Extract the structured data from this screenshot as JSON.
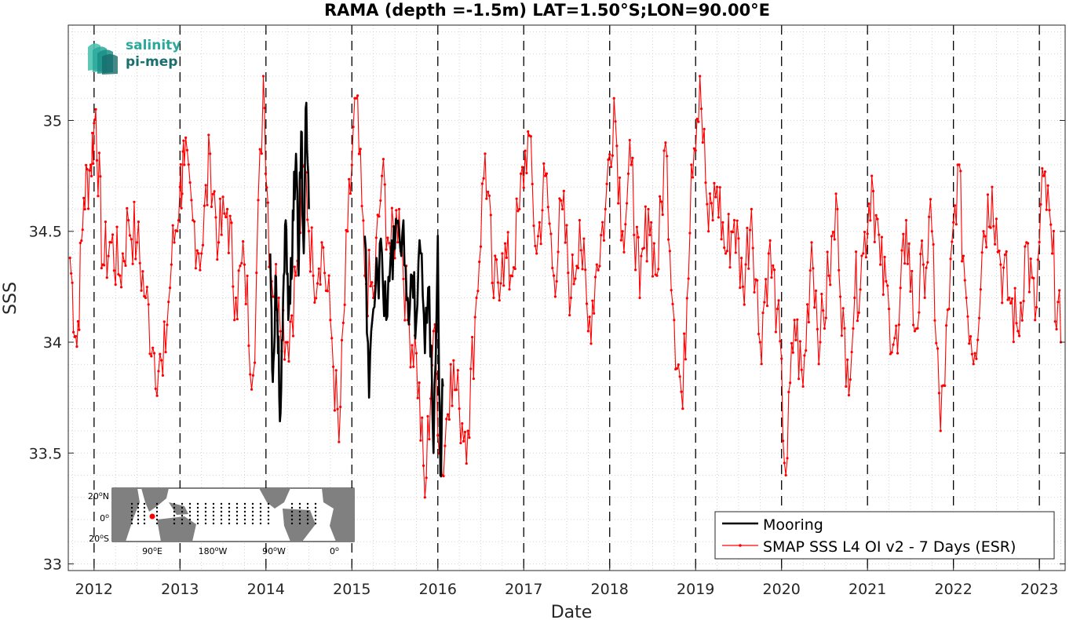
{
  "chart_data": {
    "type": "line",
    "title": "RAMA (depth =-1.5m) LAT=1.50°S;LON=90.00°E",
    "xlabel": "Date",
    "ylabel": "SSS",
    "xlim": [
      2011.7,
      2023.3
    ],
    "ylim": [
      32.97,
      35.43
    ],
    "x_ticks": [
      2012,
      2013,
      2014,
      2015,
      2016,
      2017,
      2018,
      2019,
      2020,
      2021,
      2022,
      2023
    ],
    "y_ticks": [
      33,
      33.5,
      34,
      34.5,
      35
    ],
    "x_tick_labels": [
      "2012",
      "2013",
      "2014",
      "2015",
      "2016",
      "2017",
      "2018",
      "2019",
      "2020",
      "2021",
      "2022",
      "2023"
    ],
    "y_tick_labels": [
      "33",
      "33.5",
      "34",
      "34.5",
      "35"
    ],
    "year_boundaries_dashed": [
      2012,
      2013,
      2014,
      2015,
      2016,
      2017,
      2018,
      2019,
      2020,
      2021,
      2022,
      2023
    ],
    "grid": "dotted",
    "legend_position": "bottom-right",
    "series": [
      {
        "name": "Mooring",
        "color": "#000000",
        "style": "thick-line",
        "segments": [
          {
            "x": [
              2014.05,
              2014.08,
              2014.11,
              2014.14,
              2014.17,
              2014.2,
              2014.23,
              2014.26,
              2014.29,
              2014.32,
              2014.35,
              2014.38,
              2014.41,
              2014.44,
              2014.47,
              2014.5
            ],
            "y": [
              34.4,
              33.82,
              34.3,
              33.95,
              33.68,
              34.2,
              34.55,
              34.1,
              34.38,
              34.55,
              34.85,
              34.3,
              34.95,
              34.4,
              35.08,
              34.6
            ]
          },
          {
            "x": [
              2015.15,
              2015.2,
              2015.25,
              2015.3,
              2015.35,
              2015.4,
              2015.45,
              2015.5,
              2015.55,
              2015.6,
              2015.65,
              2015.7,
              2015.75,
              2015.8,
              2015.85,
              2015.9,
              2015.95,
              2016.0,
              2016.03,
              2016.06
            ],
            "y": [
              34.48,
              33.75,
              34.15,
              34.3,
              34.4,
              34.1,
              34.38,
              34.42,
              34.5,
              34.55,
              34.2,
              34.3,
              34.1,
              34.4,
              33.95,
              34.25,
              33.5,
              34.48,
              33.4,
              33.8
            ]
          }
        ]
      },
      {
        "name": "SMAP SSS L4 OI v2 - 7 Days (ESR)",
        "color": "#ff0000",
        "style": "line-with-dots",
        "x": [
          2011.72,
          2011.8,
          2011.88,
          2011.96,
          2012.02,
          2012.1,
          2012.2,
          2012.3,
          2012.4,
          2012.5,
          2012.6,
          2012.7,
          2012.8,
          2012.9,
          2013.0,
          2013.05,
          2013.15,
          2013.25,
          2013.35,
          2013.45,
          2013.55,
          2013.65,
          2013.75,
          2013.85,
          2013.97,
          2014.05,
          2014.15,
          2014.25,
          2014.35,
          2014.45,
          2014.55,
          2014.65,
          2014.75,
          2014.85,
          2014.95,
          2015.05,
          2015.15,
          2015.25,
          2015.35,
          2015.45,
          2015.55,
          2015.65,
          2015.75,
          2015.85,
          2015.95,
          2016.05,
          2016.15,
          2016.25,
          2016.35,
          2016.45,
          2016.55,
          2016.65,
          2016.75,
          2016.85,
          2016.95,
          2017.05,
          2017.15,
          2017.25,
          2017.35,
          2017.45,
          2017.55,
          2017.65,
          2017.75,
          2017.85,
          2017.95,
          2018.05,
          2018.15,
          2018.25,
          2018.35,
          2018.45,
          2018.55,
          2018.65,
          2018.75,
          2018.85,
          2018.95,
          2019.05,
          2019.15,
          2019.25,
          2019.35,
          2019.45,
          2019.55,
          2019.65,
          2019.75,
          2019.85,
          2019.95,
          2020.05,
          2020.15,
          2020.25,
          2020.35,
          2020.45,
          2020.55,
          2020.65,
          2020.75,
          2020.85,
          2020.95,
          2021.05,
          2021.15,
          2021.25,
          2021.35,
          2021.45,
          2021.55,
          2021.65,
          2021.75,
          2021.85,
          2021.95,
          2022.05,
          2022.15,
          2022.25,
          2022.35,
          2022.45,
          2022.55,
          2022.65,
          2022.75,
          2022.85,
          2022.95,
          2023.05,
          2023.15,
          2023.25
        ],
        "y": [
          34.38,
          33.98,
          34.65,
          34.8,
          35.05,
          34.35,
          34.45,
          34.3,
          34.55,
          34.45,
          34.2,
          33.95,
          33.85,
          34.35,
          34.7,
          34.8,
          34.55,
          34.4,
          34.85,
          34.45,
          34.6,
          34.2,
          34.35,
          33.85,
          35.2,
          34.35,
          34.2,
          34.0,
          34.3,
          34.8,
          34.3,
          34.45,
          34.1,
          33.55,
          34.5,
          35.1,
          34.3,
          34.2,
          34.75,
          34.4,
          34.6,
          34.1,
          33.95,
          33.3,
          34.05,
          33.4,
          33.9,
          33.7,
          33.6,
          34.2,
          34.85,
          34.2,
          34.4,
          34.3,
          34.6,
          34.95,
          34.4,
          34.75,
          34.3,
          34.6,
          34.2,
          34.55,
          34.05,
          34.35,
          34.6,
          35.1,
          34.5,
          34.8,
          34.2,
          34.6,
          34.3,
          34.9,
          34.1,
          33.7,
          34.8,
          35.2,
          34.5,
          34.7,
          34.4,
          34.55,
          34.25,
          34.6,
          34.0,
          34.4,
          34.15,
          33.4,
          34.1,
          33.8,
          34.45,
          34.0,
          34.3,
          34.6,
          33.8,
          34.2,
          34.4,
          34.75,
          34.35,
          34.15,
          33.95,
          34.55,
          34.05,
          34.35,
          34.5,
          33.6,
          34.15,
          34.8,
          34.2,
          33.95,
          34.5,
          34.7,
          34.35,
          34.2,
          34.05,
          34.45,
          34.1,
          34.75,
          34.4,
          34.0
        ]
      }
    ]
  },
  "inset_map": {
    "lat_labels": [
      "20",
      "0",
      "20"
    ],
    "lat_suffix": [
      "N",
      "",
      "S"
    ],
    "lon_labels": [
      "90",
      "180",
      "90",
      "0"
    ],
    "lon_suffix": [
      "E",
      "W",
      "W",
      ""
    ],
    "degree_mark": "o",
    "marker_color": "#ff0000",
    "land_color": "#808080"
  },
  "logo": {
    "line1": "salinity",
    "line2": "pi-mep",
    "color1": "#2aa89a",
    "color2": "#1a6e6e"
  }
}
